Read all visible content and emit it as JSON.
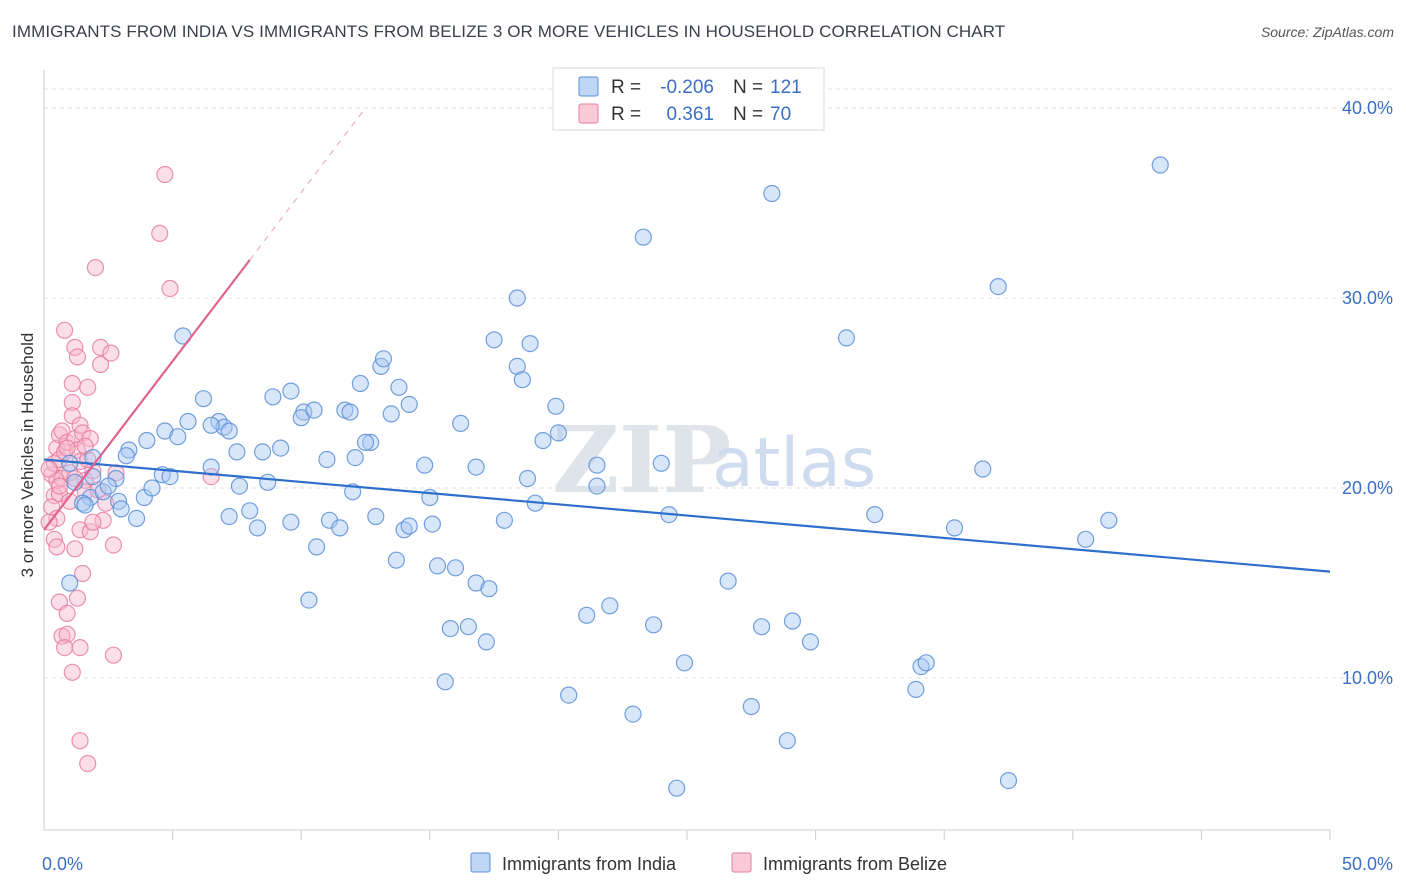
{
  "title": "IMMIGRANTS FROM INDIA VS IMMIGRANTS FROM BELIZE 3 OR MORE VEHICLES IN HOUSEHOLD CORRELATION CHART",
  "source": "Source: ZipAtlas.com",
  "watermark": {
    "zip": "ZIP",
    "atlas": "atlas"
  },
  "legend": {
    "r_label": "R =",
    "n_label": "N =",
    "india": {
      "r": "-0.206",
      "n": "121"
    },
    "belize": {
      "r": "0.361",
      "n": "70"
    }
  },
  "colors": {
    "india_fill": "#a9c8f2",
    "india_stroke": "#5b8fd6",
    "india_line": "#2f6fcc",
    "belize_fill": "#f7b8cb",
    "belize_stroke": "#e87ea0",
    "belize_line": "#e0628e",
    "tick_text": "#3a6fc4",
    "grid": "#dde1e8"
  },
  "chart_data": {
    "type": "scatter",
    "xlabel": "",
    "ylabel": "3 or more Vehicles in Household",
    "xlim": [
      0,
      50
    ],
    "ylim": [
      2,
      42
    ],
    "x_tick_labels": [
      {
        "v": 0,
        "label": "0.0%"
      },
      {
        "v": 50,
        "label": "50.0%"
      }
    ],
    "x_minor_ticks": [
      5,
      10,
      15,
      20,
      25,
      30,
      35,
      40,
      45,
      50
    ],
    "y_ticks": [
      {
        "v": 10,
        "label": "10.0%"
      },
      {
        "v": 20,
        "label": "20.0%"
      },
      {
        "v": 30,
        "label": "30.0%"
      },
      {
        "v": 40,
        "label": "40.0%"
      }
    ],
    "grid": true,
    "series": [
      {
        "name": "Immigrants from India",
        "trend": {
          "x0": 0,
          "y0": 21.5,
          "x1": 50,
          "y1": 15.6
        },
        "points": [
          [
            1.0,
            21.3
          ],
          [
            1.9,
            21.6
          ],
          [
            1.2,
            20.3
          ],
          [
            1.9,
            20.6
          ],
          [
            1.8,
            19.5
          ],
          [
            1.5,
            19.2
          ],
          [
            1.0,
            15.0
          ],
          [
            3.3,
            22.0
          ],
          [
            3.2,
            21.7
          ],
          [
            2.8,
            20.5
          ],
          [
            2.9,
            19.3
          ],
          [
            3.0,
            18.9
          ],
          [
            3.6,
            18.4
          ],
          [
            4.0,
            22.5
          ],
          [
            3.9,
            19.5
          ],
          [
            4.2,
            20.0
          ],
          [
            4.6,
            20.7
          ],
          [
            5.4,
            28.0
          ],
          [
            4.7,
            23.0
          ],
          [
            5.2,
            22.7
          ],
          [
            5.6,
            23.5
          ],
          [
            6.2,
            24.7
          ],
          [
            6.5,
            21.1
          ],
          [
            6.8,
            23.5
          ],
          [
            7.0,
            23.2
          ],
          [
            6.5,
            23.3
          ],
          [
            7.2,
            23.0
          ],
          [
            7.5,
            21.9
          ],
          [
            7.6,
            20.1
          ],
          [
            7.2,
            18.5
          ],
          [
            8.0,
            18.8
          ],
          [
            8.3,
            17.9
          ],
          [
            8.5,
            21.9
          ],
          [
            8.9,
            24.8
          ],
          [
            9.6,
            25.1
          ],
          [
            9.2,
            22.1
          ],
          [
            9.6,
            18.2
          ],
          [
            10.1,
            24.0
          ],
          [
            10.0,
            23.7
          ],
          [
            10.5,
            24.1
          ],
          [
            10.3,
            14.1
          ],
          [
            10.6,
            16.9
          ],
          [
            11.1,
            18.3
          ],
          [
            11.0,
            21.5
          ],
          [
            11.5,
            17.9
          ],
          [
            11.7,
            24.1
          ],
          [
            11.9,
            24.0
          ],
          [
            12.1,
            21.6
          ],
          [
            12.3,
            25.5
          ],
          [
            12.7,
            22.4
          ],
          [
            12.5,
            22.4
          ],
          [
            13.1,
            26.4
          ],
          [
            12.9,
            18.5
          ],
          [
            13.2,
            26.8
          ],
          [
            13.5,
            23.9
          ],
          [
            13.8,
            25.3
          ],
          [
            14.2,
            24.4
          ],
          [
            13.7,
            16.2
          ],
          [
            14.0,
            17.8
          ],
          [
            14.2,
            18.0
          ],
          [
            14.8,
            21.2
          ],
          [
            15.1,
            18.1
          ],
          [
            15.3,
            15.9
          ],
          [
            15.8,
            12.6
          ],
          [
            15.6,
            9.8
          ],
          [
            16.0,
            15.8
          ],
          [
            16.2,
            23.4
          ],
          [
            16.5,
            12.7
          ],
          [
            16.8,
            21.1
          ],
          [
            16.8,
            15.0
          ],
          [
            17.3,
            14.7
          ],
          [
            17.5,
            27.8
          ],
          [
            17.2,
            11.9
          ],
          [
            17.9,
            18.3
          ],
          [
            18.4,
            30.0
          ],
          [
            18.4,
            26.4
          ],
          [
            18.6,
            25.7
          ],
          [
            18.9,
            27.6
          ],
          [
            18.8,
            20.5
          ],
          [
            19.1,
            19.2
          ],
          [
            19.4,
            22.5
          ],
          [
            19.9,
            24.3
          ],
          [
            20.0,
            22.9
          ],
          [
            20.4,
            9.1
          ],
          [
            21.1,
            13.3
          ],
          [
            21.5,
            21.2
          ],
          [
            21.5,
            20.1
          ],
          [
            22.0,
            13.8
          ],
          [
            22.9,
            8.1
          ],
          [
            23.3,
            33.2
          ],
          [
            23.7,
            12.8
          ],
          [
            24.0,
            21.3
          ],
          [
            24.3,
            18.6
          ],
          [
            24.6,
            4.2
          ],
          [
            24.9,
            10.8
          ],
          [
            26.6,
            15.1
          ],
          [
            27.5,
            8.5
          ],
          [
            27.9,
            12.7
          ],
          [
            28.3,
            35.5
          ],
          [
            28.9,
            6.7
          ],
          [
            29.1,
            13.0
          ],
          [
            29.8,
            11.9
          ],
          [
            31.2,
            27.9
          ],
          [
            32.3,
            18.6
          ],
          [
            33.9,
            9.4
          ],
          [
            34.1,
            10.6
          ],
          [
            34.3,
            10.8
          ],
          [
            35.4,
            17.9
          ],
          [
            36.5,
            21.0
          ],
          [
            37.1,
            30.6
          ],
          [
            37.5,
            4.6
          ],
          [
            40.5,
            17.3
          ],
          [
            41.4,
            18.3
          ],
          [
            43.4,
            37.0
          ],
          [
            1.6,
            19.1
          ],
          [
            2.3,
            19.8
          ],
          [
            4.9,
            20.6
          ],
          [
            8.7,
            20.3
          ],
          [
            12.0,
            19.8
          ],
          [
            15.0,
            19.5
          ],
          [
            2.5,
            20.1
          ]
        ]
      },
      {
        "name": "Immigrants from Belize",
        "trend": {
          "x0": 0,
          "y0": 17.8,
          "x1": 8.0,
          "y1": 32.0
        },
        "trend_dash": {
          "x0": 8.0,
          "y0": 32.0,
          "x1": 12.5,
          "y1": 40.0
        },
        "points": [
          [
            0.3,
            20.7
          ],
          [
            0.4,
            21.3
          ],
          [
            0.5,
            22.1
          ],
          [
            0.4,
            19.6
          ],
          [
            0.3,
            19.0
          ],
          [
            0.5,
            20.4
          ],
          [
            0.6,
            21.5
          ],
          [
            0.5,
            18.4
          ],
          [
            0.4,
            17.3
          ],
          [
            0.5,
            16.9
          ],
          [
            0.6,
            22.8
          ],
          [
            0.7,
            20.5
          ],
          [
            0.6,
            19.7
          ],
          [
            0.8,
            28.3
          ],
          [
            0.7,
            23.0
          ],
          [
            0.8,
            21.9
          ],
          [
            0.9,
            22.4
          ],
          [
            1.0,
            20.8
          ],
          [
            1.1,
            24.5
          ],
          [
            1.1,
            23.8
          ],
          [
            1.2,
            27.4
          ],
          [
            1.1,
            25.5
          ],
          [
            1.3,
            26.9
          ],
          [
            1.2,
            22.6
          ],
          [
            1.4,
            23.3
          ],
          [
            1.3,
            22.0
          ],
          [
            1.5,
            22.9
          ],
          [
            1.4,
            21.4
          ],
          [
            1.6,
            20.4
          ],
          [
            1.7,
            25.3
          ],
          [
            1.6,
            19.8
          ],
          [
            1.8,
            22.6
          ],
          [
            1.9,
            20.9
          ],
          [
            2.0,
            31.6
          ],
          [
            2.2,
            27.4
          ],
          [
            2.2,
            26.5
          ],
          [
            2.6,
            27.1
          ],
          [
            2.4,
            19.2
          ],
          [
            2.3,
            18.3
          ],
          [
            2.8,
            20.8
          ],
          [
            4.7,
            36.5
          ],
          [
            4.5,
            33.4
          ],
          [
            4.9,
            30.5
          ],
          [
            0.6,
            14.0
          ],
          [
            0.7,
            12.2
          ],
          [
            0.9,
            12.3
          ],
          [
            0.8,
            11.6
          ],
          [
            1.1,
            10.3
          ],
          [
            1.3,
            14.2
          ],
          [
            1.5,
            15.5
          ],
          [
            1.4,
            17.8
          ],
          [
            1.2,
            16.8
          ],
          [
            1.8,
            17.7
          ],
          [
            1.9,
            18.2
          ],
          [
            2.7,
            17.0
          ],
          [
            2.7,
            11.2
          ],
          [
            1.4,
            6.7
          ],
          [
            1.7,
            5.5
          ],
          [
            1.4,
            11.6
          ],
          [
            0.9,
            13.4
          ],
          [
            6.5,
            20.6
          ],
          [
            1.0,
            19.3
          ],
          [
            0.2,
            21.0
          ],
          [
            0.2,
            18.2
          ],
          [
            1.7,
            21.5
          ],
          [
            1.2,
            20.5
          ],
          [
            0.9,
            22.1
          ],
          [
            1.6,
            22.2
          ],
          [
            2.1,
            19.9
          ],
          [
            0.6,
            20.1
          ]
        ]
      }
    ]
  },
  "bottom_legend": {
    "india": "Immigrants from India",
    "belize": "Immigrants from Belize"
  }
}
